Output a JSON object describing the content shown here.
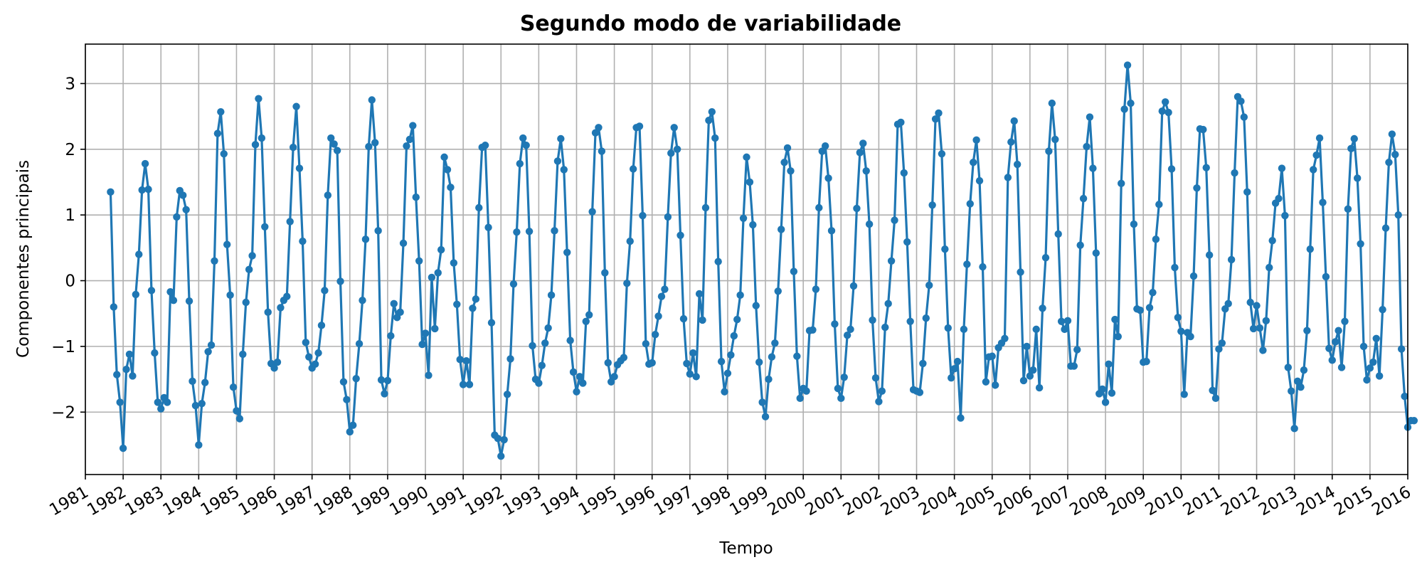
{
  "chart_data": {
    "type": "line",
    "title": "Segundo modo de variabilidade",
    "xlabel": "Tempo",
    "ylabel": "Componentes principais",
    "x_ticks": [
      "1981",
      "1982",
      "1983",
      "1984",
      "1985",
      "1986",
      "1987",
      "1988",
      "1989",
      "1990",
      "1991",
      "1992",
      "1993",
      "1994",
      "1995",
      "1996",
      "1997",
      "1998",
      "1999",
      "2000",
      "2001",
      "2002",
      "2003",
      "2004",
      "2005",
      "2006",
      "2007",
      "2008",
      "2009",
      "2010",
      "2011",
      "2012",
      "2013",
      "2014",
      "2015",
      "2016"
    ],
    "xlim": [
      1981,
      2016
    ],
    "y_ticks": [
      -2,
      -1,
      0,
      1,
      2,
      3
    ],
    "ylim": [
      -2.95,
      3.6
    ],
    "grid": true,
    "color": "#1f77b4",
    "series": [
      {
        "start": "1981-09",
        "frequency": "monthly",
        "values": [
          1.35,
          -0.4,
          -1.43,
          -1.85,
          -2.55,
          -1.35,
          -1.12,
          -1.45,
          -0.21,
          0.4,
          1.38,
          1.78,
          1.39,
          -0.15,
          -1.1,
          -1.85,
          -1.95,
          -1.78,
          -1.85,
          -0.17,
          -0.3,
          0.97,
          1.37,
          1.3,
          1.08,
          -0.31,
          -1.53,
          -1.9,
          -2.5,
          -1.87,
          -1.55,
          -1.08,
          -0.98,
          0.3,
          2.24,
          2.57,
          1.93,
          0.55,
          -0.22,
          -1.62,
          -1.98,
          -2.1,
          -1.12,
          -0.33,
          0.17,
          0.38,
          2.07,
          2.77,
          2.17,
          0.82,
          -0.48,
          -1.26,
          -1.33,
          -1.24,
          -0.41,
          -0.3,
          -0.24,
          0.9,
          2.03,
          2.65,
          1.71,
          0.6,
          -0.94,
          -1.16,
          -1.33,
          -1.27,
          -1.1,
          -0.68,
          -0.15,
          1.3,
          2.17,
          2.08,
          1.98,
          -0.01,
          -1.54,
          -1.81,
          -2.3,
          -2.2,
          -1.49,
          -0.96,
          -0.3,
          0.63,
          2.04,
          2.75,
          2.1,
          0.76,
          -1.51,
          -1.72,
          -1.52,
          -0.84,
          -0.35,
          -0.56,
          -0.48,
          0.57,
          2.05,
          2.15,
          2.36,
          1.27,
          0.3,
          -0.97,
          -0.8,
          -1.44,
          0.05,
          -0.73,
          0.12,
          0.47,
          1.88,
          1.69,
          1.42,
          0.27,
          -0.36,
          -1.2,
          -1.58,
          -1.22,
          -1.58,
          -0.42,
          -0.28,
          1.11,
          2.03,
          2.06,
          0.81,
          -0.64,
          -2.35,
          -2.4,
          -2.67,
          -2.42,
          -1.73,
          -1.19,
          -0.05,
          0.74,
          1.78,
          2.17,
          2.06,
          0.75,
          -0.99,
          -1.5,
          -1.56,
          -1.29,
          -0.95,
          -0.72,
          -0.22,
          0.76,
          1.82,
          2.16,
          1.69,
          0.43,
          -0.91,
          -1.39,
          -1.69,
          -1.46,
          -1.56,
          -0.62,
          -0.52,
          1.05,
          2.25,
          2.33,
          1.97,
          0.12,
          -1.25,
          -1.54,
          -1.46,
          -1.28,
          -1.22,
          -1.17,
          -0.04,
          0.6,
          1.7,
          2.33,
          2.35,
          0.99,
          -0.96,
          -1.27,
          -1.25,
          -0.82,
          -0.54,
          -0.24,
          -0.13,
          0.97,
          1.94,
          2.33,
          2.0,
          0.69,
          -0.58,
          -1.26,
          -1.42,
          -1.1,
          -1.46,
          -0.2,
          -0.6,
          1.11,
          2.44,
          2.57,
          2.17,
          0.29,
          -1.23,
          -1.69,
          -1.41,
          -1.13,
          -0.84,
          -0.59,
          -0.22,
          0.95,
          1.88,
          1.5,
          0.85,
          -0.38,
          -1.24,
          -1.85,
          -2.07,
          -1.5,
          -1.16,
          -0.95,
          -0.16,
          0.78,
          1.8,
          2.02,
          1.67,
          0.14,
          -1.15,
          -1.79,
          -1.64,
          -1.68,
          -0.76,
          -0.75,
          -0.13,
          1.11,
          1.97,
          2.05,
          1.56,
          0.76,
          -0.66,
          -1.64,
          -1.79,
          -1.47,
          -0.83,
          -0.74,
          -0.08,
          1.1,
          1.95,
          2.09,
          1.67,
          0.86,
          -0.6,
          -1.48,
          -1.84,
          -1.68,
          -0.71,
          -0.35,
          0.3,
          0.92,
          2.38,
          2.41,
          1.64,
          0.59,
          -0.62,
          -1.66,
          -1.68,
          -1.7,
          -1.26,
          -0.57,
          -0.07,
          1.15,
          2.46,
          2.55,
          1.93,
          0.48,
          -0.72,
          -1.48,
          -1.34,
          -1.23,
          -2.09,
          -0.74,
          0.25,
          1.17,
          1.8,
          2.14,
          1.52,
          0.21,
          -1.54,
          -1.16,
          -1.15,
          -1.59,
          -1.02,
          -0.95,
          -0.88,
          1.57,
          2.11,
          2.43,
          1.77,
          0.13,
          -1.52,
          -1.0,
          -1.45,
          -1.36,
          -0.74,
          -1.63,
          -0.42,
          0.35,
          1.97,
          2.7,
          2.15,
          0.71,
          -0.62,
          -0.74,
          -0.61,
          -1.3,
          -1.3,
          -1.05,
          0.54,
          1.25,
          2.04,
          2.49,
          1.71,
          0.42,
          -1.72,
          -1.65,
          -1.85,
          -1.27,
          -1.71,
          -0.59,
          -0.85,
          1.48,
          2.61,
          3.28,
          2.7,
          0.86,
          -0.43,
          -0.45,
          -1.24,
          -1.23,
          -0.41,
          -0.18,
          0.63,
          1.16,
          2.58,
          2.72,
          2.56,
          1.7,
          0.2,
          -0.56,
          -0.77,
          -1.73,
          -0.79,
          -0.85,
          0.07,
          1.41,
          2.31,
          2.3,
          1.72,
          0.39,
          -1.67,
          -1.79,
          -1.04,
          -0.95,
          -0.43,
          -0.35,
          0.32,
          1.64,
          2.8,
          2.73,
          2.49,
          1.35,
          -0.33,
          -0.73,
          -0.38,
          -0.72,
          -1.06,
          -0.61,
          0.2,
          0.61,
          1.18,
          1.25,
          1.71,
          0.99,
          -1.32,
          -1.68,
          -2.25,
          -1.53,
          -1.62,
          -1.36,
          -0.76,
          0.48,
          1.69,
          1.91,
          2.17,
          1.19,
          0.06,
          -1.03,
          -1.21,
          -0.93,
          -0.76,
          -1.32,
          -0.62,
          1.09,
          2.01,
          2.16,
          1.56,
          0.56,
          -1.0,
          -1.51,
          -1.33,
          -1.24,
          -0.88,
          -1.45,
          -0.44,
          0.8,
          1.8,
          2.23,
          1.92,
          1.0,
          -1.04,
          -1.76,
          -2.23,
          -2.13,
          -2.13
        ]
      }
    ]
  }
}
